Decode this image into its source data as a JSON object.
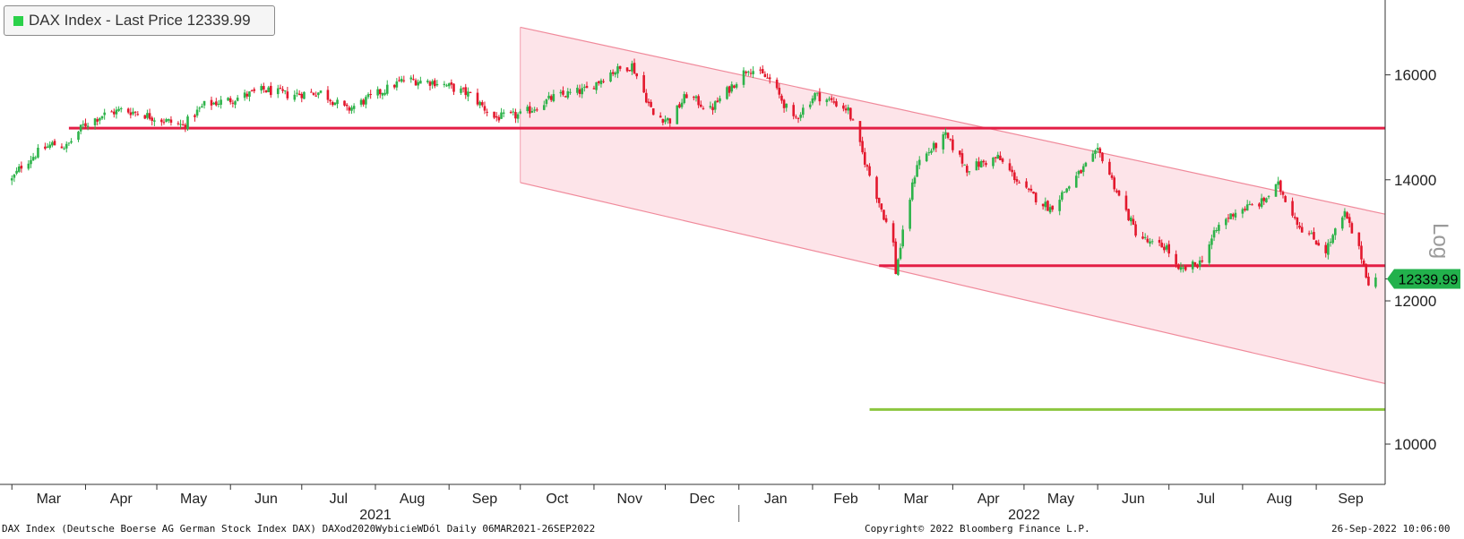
{
  "legend": {
    "label": "DAX Index - Last Price 12339.99",
    "color": "#2bd14a"
  },
  "footer": {
    "left": "DAX Index (Deutsche Boerse AG German Stock Index DAX) DAXod2020WybicieWDól  Daily 06MAR2021-26SEP2022",
    "center": "Copyright© 2022 Bloomberg Finance L.P.",
    "right": "26-Sep-2022 10:06:00"
  },
  "colors": {
    "up": "#2db34a",
    "down": "#e3182d",
    "channel_fill": "#fde4e9",
    "channel_line": "#f08a9b",
    "support": "#e31e45",
    "target": "#8cc63f",
    "price_badge": "#22b14c"
  },
  "chart_data": {
    "type": "candlestick",
    "title": "DAX Index - Last Price 12339.99",
    "y_scale": "Log",
    "ylim": [
      9500,
      17600
    ],
    "y_ticks": [
      10000,
      12000,
      14000,
      16000
    ],
    "y_tick_labels": [
      "10000",
      "12000",
      "14000",
      "16000"
    ],
    "x_range": [
      "2021-02-24",
      "2022-09-30"
    ],
    "x_month_ticks": [
      "2021-03-01",
      "2021-04-01",
      "2021-05-01",
      "2021-06-01",
      "2021-07-01",
      "2021-08-01",
      "2021-09-01",
      "2021-10-01",
      "2021-11-01",
      "2021-12-01",
      "2022-01-01",
      "2022-02-01",
      "2022-03-01",
      "2022-04-01",
      "2022-05-01",
      "2022-06-01",
      "2022-07-01",
      "2022-08-01",
      "2022-09-01"
    ],
    "x_month_labels": [
      "Mar",
      "Apr",
      "May",
      "Jun",
      "Jul",
      "Aug",
      "Sep",
      "Oct",
      "Nov",
      "Dec",
      "Jan",
      "Feb",
      "Mar",
      "Apr",
      "May",
      "Jun",
      "Jul",
      "Aug",
      "Sep"
    ],
    "x_year_labels": [
      {
        "label": "2021",
        "date": "2021-08-01"
      },
      {
        "label": "2022",
        "date": "2022-05-01"
      }
    ],
    "year_divider": "2022-01-01",
    "last_price": 12339.99,
    "last_price_label": "12339.99",
    "y_scale_label": "Log",
    "series_anchors": [
      [
        "2021-03-01",
        14000
      ],
      [
        "2021-03-05",
        14250
      ],
      [
        "2021-03-12",
        14500
      ],
      [
        "2021-03-18",
        14650
      ],
      [
        "2021-03-24",
        14600
      ],
      [
        "2021-03-31",
        15000
      ],
      [
        "2021-04-08",
        15200
      ],
      [
        "2021-04-16",
        15300
      ],
      [
        "2021-04-23",
        15250
      ],
      [
        "2021-04-30",
        15150
      ],
      [
        "2021-05-12",
        15000
      ],
      [
        "2021-05-21",
        15400
      ],
      [
        "2021-06-01",
        15500
      ],
      [
        "2021-06-15",
        15700
      ],
      [
        "2021-06-25",
        15600
      ],
      [
        "2021-07-09",
        15650
      ],
      [
        "2021-07-20",
        15300
      ],
      [
        "2021-07-30",
        15550
      ],
      [
        "2021-08-13",
        15900
      ],
      [
        "2021-08-27",
        15850
      ],
      [
        "2021-09-10",
        15600
      ],
      [
        "2021-09-20",
        15150
      ],
      [
        "2021-10-01",
        15200
      ],
      [
        "2021-10-15",
        15550
      ],
      [
        "2021-10-29",
        15700
      ],
      [
        "2021-11-08",
        16050
      ],
      [
        "2021-11-17",
        16200
      ],
      [
        "2021-11-26",
        15200
      ],
      [
        "2021-12-03",
        15100
      ],
      [
        "2021-12-10",
        15600
      ],
      [
        "2021-12-20",
        15300
      ],
      [
        "2022-01-05",
        16150
      ],
      [
        "2022-01-14",
        15900
      ],
      [
        "2022-01-24",
        15100
      ],
      [
        "2022-02-02",
        15600
      ],
      [
        "2022-02-10",
        15450
      ],
      [
        "2022-02-16",
        15300
      ],
      [
        "2022-02-24",
        14200
      ],
      [
        "2022-03-07",
        12900
      ],
      [
        "2022-03-08",
        12450
      ],
      [
        "2022-03-17",
        14300
      ],
      [
        "2022-03-29",
        14800
      ],
      [
        "2022-04-07",
        14200
      ],
      [
        "2022-04-20",
        14400
      ],
      [
        "2022-05-02",
        13800
      ],
      [
        "2022-05-12",
        13500
      ],
      [
        "2022-05-20",
        13900
      ],
      [
        "2022-06-01",
        14500
      ],
      [
        "2022-06-03",
        14400
      ],
      [
        "2022-06-10",
        13700
      ],
      [
        "2022-06-17",
        13100
      ],
      [
        "2022-06-23",
        12900
      ],
      [
        "2022-06-30",
        12850
      ],
      [
        "2022-07-05",
        12450
      ],
      [
        "2022-07-14",
        12600
      ],
      [
        "2022-07-22",
        13200
      ],
      [
        "2022-07-29",
        13450
      ],
      [
        "2022-08-09",
        13600
      ],
      [
        "2022-08-16",
        13900
      ],
      [
        "2022-08-25",
        13200
      ],
      [
        "2022-09-05",
        12800
      ],
      [
        "2022-09-13",
        13400
      ],
      [
        "2022-09-20",
        12700
      ],
      [
        "2022-09-23",
        12290
      ],
      [
        "2022-09-26",
        12340
      ]
    ],
    "annotations": {
      "channel_upper": [
        [
          "2021-10-01",
          17000
        ],
        [
          "2022-09-30",
          13400
        ]
      ],
      "channel_lower": [
        [
          "2021-10-01",
          13950
        ],
        [
          "2022-09-30",
          10800
        ]
      ],
      "resistance": {
        "y": 14950,
        "from": "2021-03-25",
        "to": "2022-09-30"
      },
      "support": {
        "y": 12550,
        "from": "2022-03-01",
        "to": "2022-09-30"
      },
      "target": {
        "y": 10450,
        "from": "2022-02-25",
        "to": "2022-09-30"
      }
    }
  }
}
